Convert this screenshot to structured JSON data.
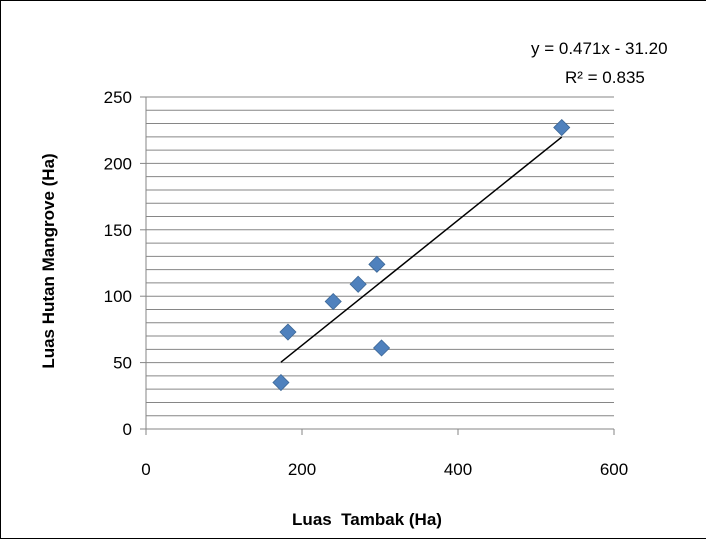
{
  "chart_data": {
    "type": "scatter",
    "title": "",
    "xlabel": "Luas  Tambak (Ha)",
    "ylabel": "Luas Hutan Mangrove (Ha)",
    "xlim": [
      0,
      600
    ],
    "ylim": [
      0,
      250
    ],
    "x_ticks": [
      "0",
      "200",
      "400",
      "600"
    ],
    "y_ticks": [
      "0",
      "50",
      "100",
      "150",
      "200",
      "250"
    ],
    "y_minor_gridline_step": 10,
    "grid": true,
    "legend": "none",
    "marker": "diamond",
    "marker_color": "#4f81bd",
    "series": [
      {
        "points": [
          {
            "x": 173,
            "y": 35
          },
          {
            "x": 182,
            "y": 73
          },
          {
            "x": 240,
            "y": 96
          },
          {
            "x": 272,
            "y": 109
          },
          {
            "x": 296,
            "y": 124
          },
          {
            "x": 302,
            "y": 61
          },
          {
            "x": 533,
            "y": 227
          }
        ]
      }
    ],
    "trendline": {
      "type": "linear",
      "slope": 0.471,
      "intercept": -31.2,
      "x_range": [
        173,
        533
      ],
      "equation_label": "y = 0.471x - 31.20",
      "r2_label": "R² = 0.835",
      "color": "#000000"
    }
  }
}
